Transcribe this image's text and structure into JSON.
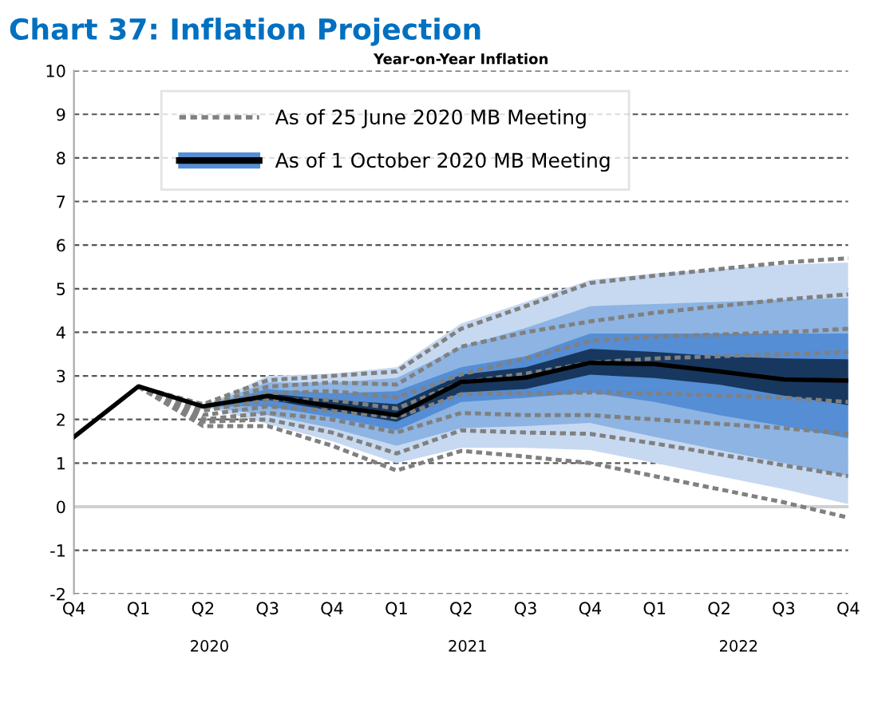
{
  "chart_data": {
    "type": "line",
    "title": "Chart 37: Inflation Projection",
    "subtitle": "Year-on-Year Inflation",
    "categories": [
      "Q4",
      "Q1",
      "Q2",
      "Q3",
      "Q4",
      "Q1",
      "Q2",
      "Q3",
      "Q4",
      "Q1",
      "Q2",
      "Q3",
      "Q4"
    ],
    "annotations": [
      "2020",
      "2021",
      "2022"
    ],
    "ylim": [
      -2,
      10
    ],
    "yticks": [
      -2,
      -1,
      0,
      1,
      2,
      3,
      4,
      5,
      6,
      7,
      8,
      9,
      10
    ],
    "grid": "y",
    "legend": "top left",
    "ref_lines": [
      {
        "axis": "y",
        "value": 0,
        "color": "#d0d0d0",
        "line_style": "solid"
      }
    ],
    "series": [
      {
        "type": "line",
        "color": "#c6d9f1",
        "values": [
          null,
          null,
          null,
          null,
          null,
          null,
          null,
          null,
          null,
          null,
          null,
          null,
          null
        ],
        "upper": [
          null,
          null,
          2.3,
          3.0,
          3.05,
          3.2,
          4.2,
          4.7,
          5.2,
          5.35,
          5.45,
          5.55,
          5.6
        ],
        "lower": [
          null,
          null,
          2.3,
          1.9,
          1.5,
          1.0,
          1.35,
          1.35,
          1.3,
          1.0,
          0.7,
          0.4,
          0.06
        ]
      },
      {
        "type": "line",
        "color": "#8db4e2",
        "values": [
          null,
          null,
          null,
          null,
          null,
          null,
          null,
          null,
          null,
          null,
          null,
          null,
          null
        ],
        "upper": [
          null,
          null,
          2.3,
          2.85,
          2.85,
          2.95,
          3.67,
          4.1,
          4.6,
          4.65,
          4.7,
          4.75,
          4.78
        ],
        "lower": [
          null,
          null,
          2.3,
          2.1,
          1.8,
          1.4,
          1.8,
          1.85,
          1.92,
          1.6,
          1.3,
          1.0,
          0.7
        ]
      },
      {
        "type": "line",
        "color": "#558ed5",
        "values": [
          null,
          null,
          null,
          null,
          null,
          null,
          null,
          null,
          null,
          null,
          null,
          null,
          null
        ],
        "upper": [
          null,
          null,
          2.3,
          2.7,
          2.6,
          2.65,
          3.2,
          3.45,
          3.97,
          3.97,
          3.97,
          3.97,
          3.97
        ],
        "lower": [
          null,
          null,
          2.3,
          2.3,
          2.05,
          1.75,
          2.4,
          2.5,
          2.62,
          2.4,
          2.1,
          1.85,
          1.57
        ]
      },
      {
        "type": "line",
        "color": "#17375e",
        "values": [
          null,
          null,
          null,
          null,
          null,
          null,
          null,
          null,
          null,
          null,
          null,
          null,
          null
        ],
        "upper": [
          null,
          null,
          2.3,
          2.6,
          2.45,
          2.35,
          3.03,
          3.2,
          3.62,
          3.55,
          3.45,
          3.4,
          3.38
        ],
        "lower": [
          null,
          null,
          2.3,
          2.45,
          2.2,
          1.95,
          2.62,
          2.7,
          3.03,
          2.95,
          2.8,
          2.55,
          2.33
        ]
      },
      {
        "type": "line",
        "name": "As of 25 June 2020 MB Meeting",
        "color": "#808080",
        "line_style": "dotted",
        "values": [
          null,
          2.75,
          2.35,
          2.9,
          3.0,
          3.1,
          4.08,
          4.6,
          5.13,
          5.3,
          5.45,
          5.6,
          5.7
        ]
      },
      {
        "type": "line",
        "color": "#808080",
        "line_style": "dotted",
        "values": [
          null,
          2.75,
          2.3,
          2.75,
          2.85,
          2.8,
          3.67,
          4.0,
          4.25,
          4.45,
          4.6,
          4.75,
          4.87
        ]
      },
      {
        "type": "line",
        "color": "#808080",
        "line_style": "dotted",
        "values": [
          null,
          2.75,
          2.25,
          2.6,
          2.65,
          2.5,
          3.03,
          3.4,
          3.8,
          3.9,
          3.95,
          4.0,
          4.08
        ]
      },
      {
        "type": "line",
        "color": "#808080",
        "line_style": "dotted",
        "values": [
          null,
          2.75,
          2.2,
          2.45,
          2.45,
          2.25,
          2.85,
          3.05,
          3.3,
          3.4,
          3.45,
          3.5,
          3.55
        ]
      },
      {
        "type": "line",
        "color": "#808080",
        "line_style": "dotted",
        "values": [
          null,
          2.75,
          2.1,
          2.3,
          2.2,
          2.05,
          2.58,
          2.6,
          2.62,
          2.6,
          2.55,
          2.5,
          2.4
        ]
      },
      {
        "type": "line",
        "color": "#808080",
        "line_style": "dotted",
        "values": [
          null,
          2.75,
          2.0,
          2.15,
          2.0,
          1.7,
          2.15,
          2.1,
          2.1,
          2.0,
          1.9,
          1.8,
          1.67
        ]
      },
      {
        "type": "line",
        "color": "#808080",
        "line_style": "dotted",
        "values": [
          null,
          2.75,
          1.95,
          2.0,
          1.7,
          1.22,
          1.75,
          1.7,
          1.67,
          1.45,
          1.2,
          0.95,
          0.7
        ]
      },
      {
        "type": "line",
        "color": "#808080",
        "line_style": "dotted",
        "values": [
          null,
          2.75,
          1.85,
          1.85,
          1.4,
          0.83,
          1.28,
          1.15,
          1.0,
          0.7,
          0.4,
          0.1,
          -0.25
        ]
      },
      {
        "type": "line",
        "name": "As of 1 October 2020 MB Meeting",
        "color": "#000000",
        "line_style": "solid",
        "values": [
          1.6,
          2.76,
          2.3,
          2.54,
          2.3,
          2.1,
          2.86,
          2.96,
          3.3,
          3.27,
          3.1,
          2.92,
          2.89
        ]
      }
    ]
  }
}
